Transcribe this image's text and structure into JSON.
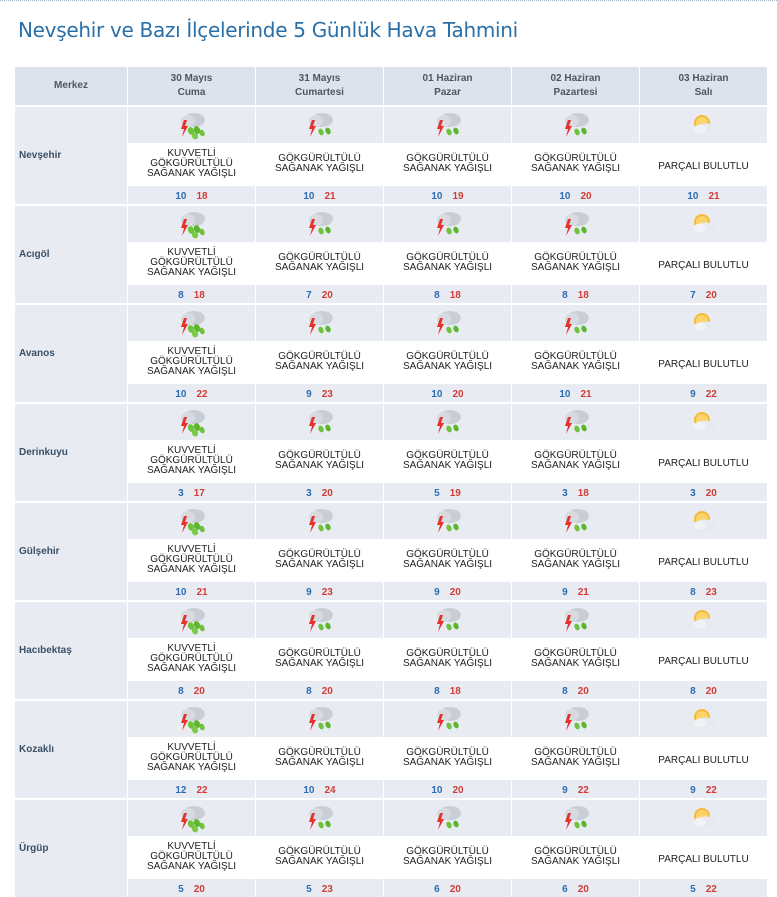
{
  "page": {
    "title": "Nevşehir ve Bazı İlçelerinde 5 Günlük Hava Tahmini"
  },
  "header": {
    "location_label": "Merkez",
    "days": [
      {
        "date": "30 Mayıs",
        "weekday": "Cuma"
      },
      {
        "date": "31 Mayıs",
        "weekday": "Cumartesi"
      },
      {
        "date": "01 Haziran",
        "weekday": "Pazar"
      },
      {
        "date": "02 Haziran",
        "weekday": "Pazartesi"
      },
      {
        "date": "03 Haziran",
        "weekday": "Salı"
      }
    ]
  },
  "icons": {
    "storm-heavy": "heavy-thunderstorm-rain-icon",
    "storm": "thunderstorm-rain-icon",
    "partly": "partly-cloudy-icon"
  },
  "colors": {
    "title": "#2a6fa8",
    "header_bg": "#dde3eb",
    "band_bg": "#e8ecf2",
    "temp_min": "#2b6cb5",
    "temp_max": "#d23b36"
  },
  "locations": [
    {
      "name": "Nevşehir",
      "forecasts": [
        {
          "icon": "storm-heavy",
          "desc": "KUVVETLİ GÖKGÜRÜLTÜLÜ SAĞANAK YAĞIŞLI",
          "min": "10",
          "max": "18"
        },
        {
          "icon": "storm",
          "desc": "GÖKGÜRÜLTÜLÜ SAĞANAK YAĞIŞLI",
          "min": "10",
          "max": "21"
        },
        {
          "icon": "storm",
          "desc": "GÖKGÜRÜLTÜLÜ SAĞANAK YAĞIŞLI",
          "min": "10",
          "max": "19"
        },
        {
          "icon": "storm",
          "desc": "GÖKGÜRÜLTÜLÜ SAĞANAK YAĞIŞLI",
          "min": "10",
          "max": "20"
        },
        {
          "icon": "partly",
          "desc": "PARÇALI BULUTLU",
          "min": "10",
          "max": "21"
        }
      ]
    },
    {
      "name": "Acıgöl",
      "forecasts": [
        {
          "icon": "storm-heavy",
          "desc": "KUVVETLİ GÖKGÜRÜLTÜLÜ SAĞANAK YAĞIŞLI",
          "min": "8",
          "max": "18"
        },
        {
          "icon": "storm",
          "desc": "GÖKGÜRÜLTÜLÜ SAĞANAK YAĞIŞLI",
          "min": "7",
          "max": "20"
        },
        {
          "icon": "storm",
          "desc": "GÖKGÜRÜLTÜLÜ SAĞANAK YAĞIŞLI",
          "min": "8",
          "max": "18"
        },
        {
          "icon": "storm",
          "desc": "GÖKGÜRÜLTÜLÜ SAĞANAK YAĞIŞLI",
          "min": "8",
          "max": "18"
        },
        {
          "icon": "partly",
          "desc": "PARÇALI BULUTLU",
          "min": "7",
          "max": "20"
        }
      ]
    },
    {
      "name": "Avanos",
      "forecasts": [
        {
          "icon": "storm-heavy",
          "desc": "KUVVETLİ GÖKGÜRÜLTÜLÜ SAĞANAK YAĞIŞLI",
          "min": "10",
          "max": "22"
        },
        {
          "icon": "storm",
          "desc": "GÖKGÜRÜLTÜLÜ SAĞANAK YAĞIŞLI",
          "min": "9",
          "max": "23"
        },
        {
          "icon": "storm",
          "desc": "GÖKGÜRÜLTÜLÜ SAĞANAK YAĞIŞLI",
          "min": "10",
          "max": "20"
        },
        {
          "icon": "storm",
          "desc": "GÖKGÜRÜLTÜLÜ SAĞANAK YAĞIŞLI",
          "min": "10",
          "max": "21"
        },
        {
          "icon": "partly",
          "desc": "PARÇALI BULUTLU",
          "min": "9",
          "max": "22"
        }
      ]
    },
    {
      "name": "Derinkuyu",
      "forecasts": [
        {
          "icon": "storm-heavy",
          "desc": "KUVVETLİ GÖKGÜRÜLTÜLÜ SAĞANAK YAĞIŞLI",
          "min": "3",
          "max": "17"
        },
        {
          "icon": "storm",
          "desc": "GÖKGÜRÜLTÜLÜ SAĞANAK YAĞIŞLI",
          "min": "3",
          "max": "20"
        },
        {
          "icon": "storm",
          "desc": "GÖKGÜRÜLTÜLÜ SAĞANAK YAĞIŞLI",
          "min": "5",
          "max": "19"
        },
        {
          "icon": "storm",
          "desc": "GÖKGÜRÜLTÜLÜ SAĞANAK YAĞIŞLI",
          "min": "3",
          "max": "18"
        },
        {
          "icon": "partly",
          "desc": "PARÇALI BULUTLU",
          "min": "3",
          "max": "20"
        }
      ]
    },
    {
      "name": "Gülşehir",
      "forecasts": [
        {
          "icon": "storm-heavy",
          "desc": "KUVVETLİ GÖKGÜRÜLTÜLÜ SAĞANAK YAĞIŞLI",
          "min": "10",
          "max": "21"
        },
        {
          "icon": "storm",
          "desc": "GÖKGÜRÜLTÜLÜ SAĞANAK YAĞIŞLI",
          "min": "9",
          "max": "23"
        },
        {
          "icon": "storm",
          "desc": "GÖKGÜRÜLTÜLÜ SAĞANAK YAĞIŞLI",
          "min": "9",
          "max": "20"
        },
        {
          "icon": "storm",
          "desc": "GÖKGÜRÜLTÜLÜ SAĞANAK YAĞIŞLI",
          "min": "9",
          "max": "21"
        },
        {
          "icon": "partly",
          "desc": "PARÇALI BULUTLU",
          "min": "8",
          "max": "23"
        }
      ]
    },
    {
      "name": "Hacıbektaş",
      "forecasts": [
        {
          "icon": "storm-heavy",
          "desc": "KUVVETLİ GÖKGÜRÜLTÜLÜ SAĞANAK YAĞIŞLI",
          "min": "8",
          "max": "20"
        },
        {
          "icon": "storm",
          "desc": "GÖKGÜRÜLTÜLÜ SAĞANAK YAĞIŞLI",
          "min": "8",
          "max": "20"
        },
        {
          "icon": "storm",
          "desc": "GÖKGÜRÜLTÜLÜ SAĞANAK YAĞIŞLI",
          "min": "8",
          "max": "18"
        },
        {
          "icon": "storm",
          "desc": "GÖKGÜRÜLTÜLÜ SAĞANAK YAĞIŞLI",
          "min": "8",
          "max": "20"
        },
        {
          "icon": "partly",
          "desc": "PARÇALI BULUTLU",
          "min": "8",
          "max": "20"
        }
      ]
    },
    {
      "name": "Kozaklı",
      "forecasts": [
        {
          "icon": "storm-heavy",
          "desc": "KUVVETLİ GÖKGÜRÜLTÜLÜ SAĞANAK YAĞIŞLI",
          "min": "12",
          "max": "22"
        },
        {
          "icon": "storm",
          "desc": "GÖKGÜRÜLTÜLÜ SAĞANAK YAĞIŞLI",
          "min": "10",
          "max": "24"
        },
        {
          "icon": "storm",
          "desc": "GÖKGÜRÜLTÜLÜ SAĞANAK YAĞIŞLI",
          "min": "10",
          "max": "20"
        },
        {
          "icon": "storm",
          "desc": "GÖKGÜRÜLTÜLÜ SAĞANAK YAĞIŞLI",
          "min": "9",
          "max": "22"
        },
        {
          "icon": "partly",
          "desc": "PARÇALI BULUTLU",
          "min": "9",
          "max": "22"
        }
      ]
    },
    {
      "name": "Ürgüp",
      "forecasts": [
        {
          "icon": "storm-heavy",
          "desc": "KUVVETLİ GÖKGÜRÜLTÜLÜ SAĞANAK YAĞIŞLI",
          "min": "5",
          "max": "20"
        },
        {
          "icon": "storm",
          "desc": "GÖKGÜRÜLTÜLÜ SAĞANAK YAĞIŞLI",
          "min": "5",
          "max": "23"
        },
        {
          "icon": "storm",
          "desc": "GÖKGÜRÜLTÜLÜ SAĞANAK YAĞIŞLI",
          "min": "6",
          "max": "20"
        },
        {
          "icon": "storm",
          "desc": "GÖKGÜRÜLTÜLÜ SAĞANAK YAĞIŞLI",
          "min": "6",
          "max": "20"
        },
        {
          "icon": "partly",
          "desc": "PARÇALI BULUTLU",
          "min": "5",
          "max": "22"
        }
      ]
    }
  ]
}
